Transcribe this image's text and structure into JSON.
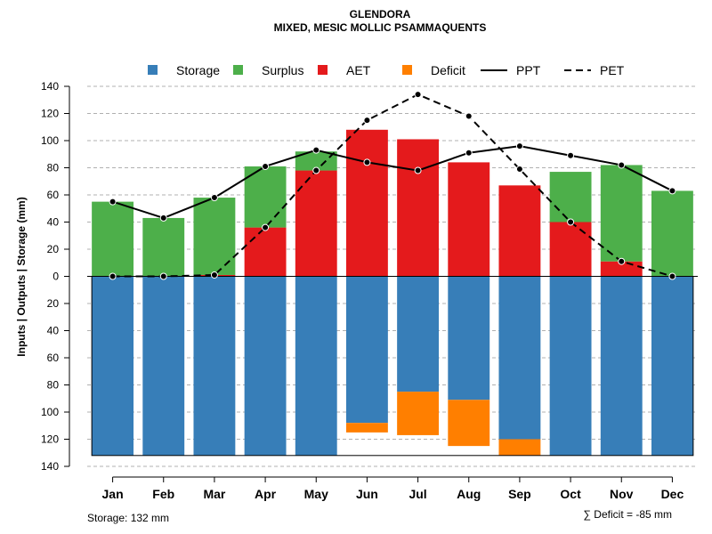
{
  "chart_data": {
    "type": "bar",
    "title": "GLENDORA",
    "subtitle": "MIXED, MESIC MOLLIC PSAMMAQUENTS",
    "ylabel": "Inputs | Outputs | Storage    (mm)",
    "ylim": [
      -140,
      140
    ],
    "yticks": [
      140,
      120,
      100,
      80,
      60,
      40,
      20,
      0,
      -20,
      -40,
      -60,
      -80,
      -100,
      -120,
      -140
    ],
    "ytick_labels": [
      "140",
      "120",
      "100",
      "80",
      "60",
      "40",
      "20",
      "0",
      "20",
      "40",
      "60",
      "80",
      "100",
      "120",
      "140"
    ],
    "categories": [
      "Jan",
      "Feb",
      "Mar",
      "Apr",
      "May",
      "Jun",
      "Jul",
      "Aug",
      "Sep",
      "Oct",
      "Nov",
      "Dec"
    ],
    "series": [
      {
        "name": "Storage",
        "type": "bar",
        "color": "#377EB8",
        "values": [
          -132,
          -132,
          -132,
          -132,
          -132,
          -108,
          -85,
          -91,
          -120,
          -132,
          -132,
          -132
        ]
      },
      {
        "name": "Surplus",
        "type": "bar",
        "color": "#4DAF4A",
        "values": [
          55,
          43,
          57,
          45,
          14,
          0,
          0,
          0,
          0,
          37,
          71,
          63
        ]
      },
      {
        "name": "AET",
        "type": "bar",
        "color": "#E41A1C",
        "values": [
          0,
          0,
          1,
          36,
          78,
          108,
          101,
          84,
          67,
          40,
          11,
          0
        ]
      },
      {
        "name": "Deficit",
        "type": "bar",
        "color": "#FF7F00",
        "values": [
          0,
          0,
          0,
          0,
          0,
          -7,
          -32,
          -34,
          -12,
          0,
          0,
          0
        ]
      },
      {
        "name": "PPT",
        "type": "line",
        "color": "#000000",
        "values": [
          55,
          43,
          58,
          81,
          93,
          84,
          78,
          91,
          96,
          89,
          82,
          63
        ]
      },
      {
        "name": "PET",
        "type": "line",
        "color": "#000000",
        "dash": true,
        "values": [
          0,
          0,
          1,
          36,
          78,
          115,
          134,
          118,
          79,
          40,
          11,
          0
        ]
      }
    ],
    "legend_position": "top",
    "grid": true,
    "storage_note": "Storage: 132 mm",
    "deficit_note": "∑ Deficit = -85 mm"
  }
}
